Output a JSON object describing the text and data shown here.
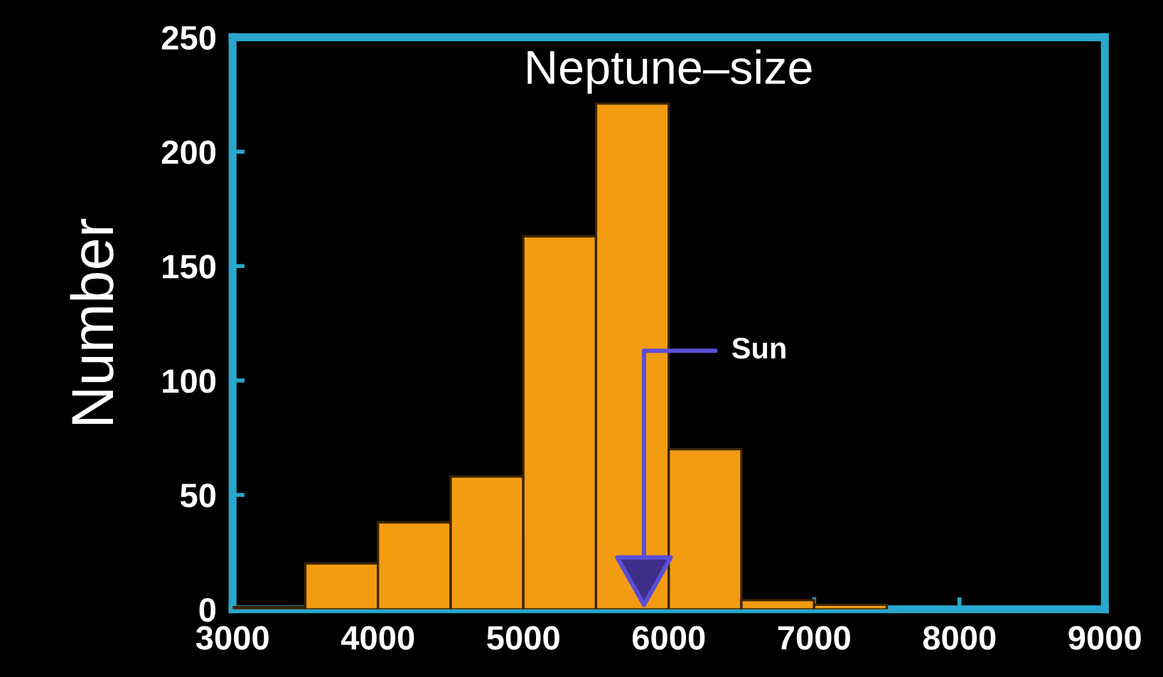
{
  "chart_data": {
    "type": "histogram",
    "title": "Neptune–size",
    "ylabel": "Number",
    "bins": [
      3000,
      3500,
      4000,
      4500,
      5000,
      5500,
      6000,
      6500,
      7000,
      7500
    ],
    "values": [
      1,
      20,
      38,
      58,
      163,
      221,
      70,
      4,
      2
    ],
    "color": "#f39c12",
    "xlim": [
      3000,
      9000
    ],
    "xticks": [
      3000,
      4000,
      5000,
      6000,
      7000,
      8000,
      9000
    ],
    "ylim": [
      0,
      250
    ],
    "yticks": [
      0,
      50,
      100,
      150,
      200,
      250
    ],
    "annotations": [
      {
        "text": "Sun",
        "x": 5830,
        "y": 0
      }
    ],
    "grid": false,
    "legend": false
  }
}
